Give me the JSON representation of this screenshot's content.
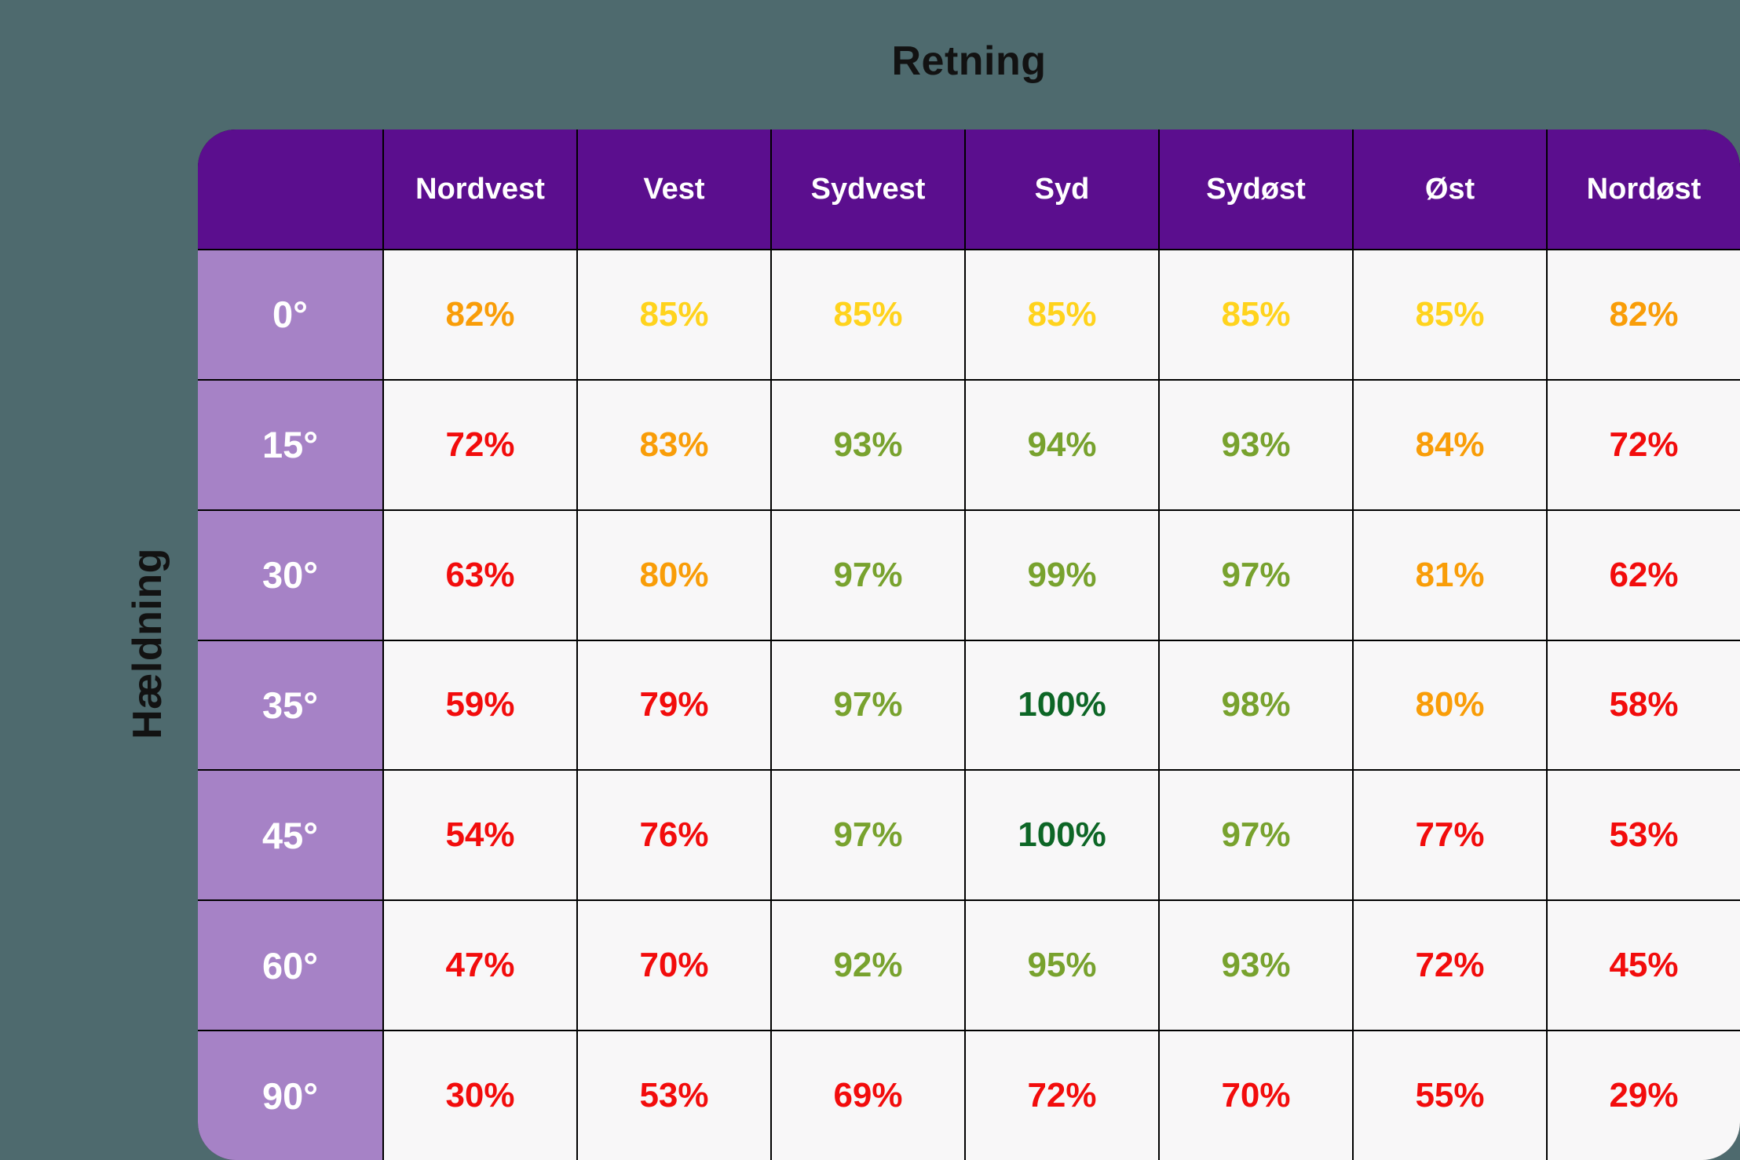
{
  "labels": {
    "top_axis": "Retning",
    "left_axis": "Hældning"
  },
  "palette": {
    "page_bg": "#4E6A6E",
    "header_bg": "#5B0E8E",
    "row_header_bg": "#A682C6",
    "cell_bg": "#F8F7F8",
    "header_text": "#FFFFFF",
    "grid_line": "#000000",
    "title_text": "#121212",
    "red": "#F20C0C",
    "orange": "#F99D08",
    "yellow": "#FFD31D",
    "green": "#78A22E",
    "dark_green": "#0D6626"
  },
  "chart_data": {
    "type": "heatmap",
    "title": "Retning",
    "xlabel": "Retning",
    "ylabel": "Hældning",
    "unit": "%",
    "legend_position": "none",
    "grid": true,
    "x_categories": [
      "Nordvest",
      "Vest",
      "Sydvest",
      "Syd",
      "Sydøst",
      "Øst",
      "Nordøst"
    ],
    "y_categories": [
      "0°",
      "15°",
      "30°",
      "35°",
      "45°",
      "60°",
      "90°"
    ],
    "values": [
      [
        82,
        85,
        85,
        85,
        85,
        85,
        82
      ],
      [
        72,
        83,
        93,
        94,
        93,
        84,
        72
      ],
      [
        63,
        80,
        97,
        99,
        97,
        81,
        62
      ],
      [
        59,
        79,
        97,
        100,
        98,
        80,
        58
      ],
      [
        54,
        76,
        97,
        100,
        97,
        77,
        53
      ],
      [
        47,
        70,
        92,
        95,
        93,
        72,
        45
      ],
      [
        30,
        53,
        69,
        72,
        70,
        55,
        29
      ]
    ],
    "cell_colors": [
      [
        "orange",
        "yellow",
        "yellow",
        "yellow",
        "yellow",
        "yellow",
        "orange"
      ],
      [
        "red",
        "orange",
        "green",
        "green",
        "green",
        "orange",
        "red"
      ],
      [
        "red",
        "orange",
        "green",
        "green",
        "green",
        "orange",
        "red"
      ],
      [
        "red",
        "red",
        "green",
        "dark_green",
        "green",
        "orange",
        "red"
      ],
      [
        "red",
        "red",
        "green",
        "dark_green",
        "green",
        "red",
        "red"
      ],
      [
        "red",
        "red",
        "green",
        "green",
        "green",
        "red",
        "red"
      ],
      [
        "red",
        "red",
        "red",
        "red",
        "red",
        "red",
        "red"
      ]
    ]
  }
}
